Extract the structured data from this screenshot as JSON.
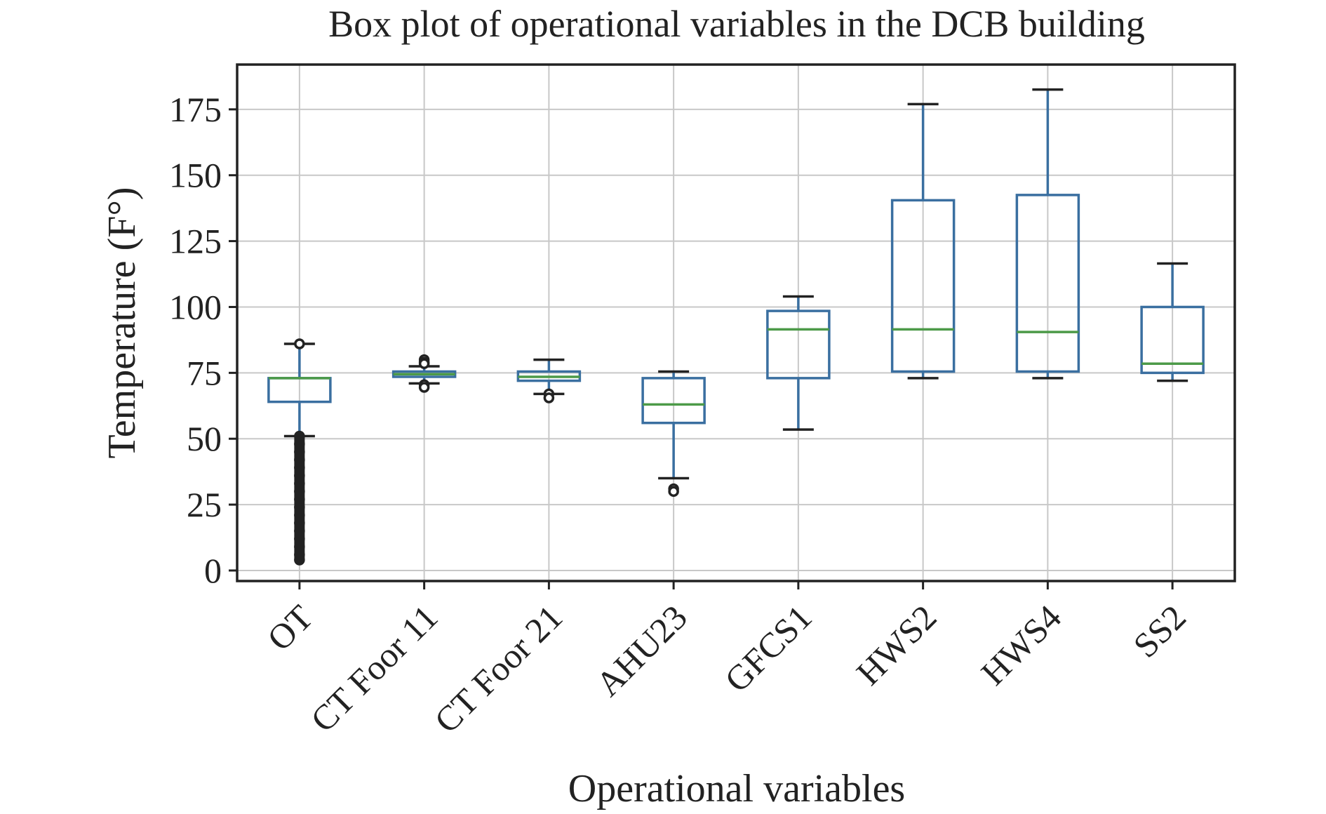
{
  "chart_data": {
    "type": "box",
    "title": "Box plot of operational variables in the DCB building",
    "xlabel": "Operational variables",
    "ylabel": "Temperature (F°)",
    "ylim": [
      -4,
      192
    ],
    "yticks": [
      0,
      25,
      50,
      75,
      100,
      125,
      150,
      175
    ],
    "grid": true,
    "colors": {
      "box": "#3a6fa0",
      "median": "#4c9a48",
      "whisker": "#3a6fa0",
      "cap": "#222222",
      "flier": "#222222",
      "grid": "#c8c8c8",
      "frame": "#222222"
    },
    "categories": [
      "OT",
      "CT Foor 11",
      "CT Foor 21",
      "AHU23",
      "GFCS1",
      "HWS2",
      "HWS4",
      "SS2"
    ],
    "boxes": [
      {
        "name": "OT",
        "whislo": 51,
        "q1": 64,
        "med": 73,
        "q3": 73,
        "whishi": 86,
        "fliers": [
          86,
          51,
          48,
          45,
          42,
          39,
          36,
          33,
          30,
          27,
          24,
          21,
          18,
          15,
          12,
          9,
          6,
          4
        ]
      },
      {
        "name": "CT Foor 11",
        "whislo": 71,
        "q1": 73.5,
        "med": 74.5,
        "q3": 75.5,
        "whishi": 77.5,
        "fliers": [
          80,
          79,
          78.5,
          70.5,
          69.5
        ]
      },
      {
        "name": "CT Foor 21",
        "whislo": 67,
        "q1": 72,
        "med": 73.5,
        "q3": 75.5,
        "whishi": 80,
        "fliers": [
          67,
          65.5
        ]
      },
      {
        "name": "AHU23",
        "whislo": 35,
        "q1": 56,
        "med": 63,
        "q3": 73,
        "whishi": 75.5,
        "fliers": [
          31,
          30
        ]
      },
      {
        "name": "GFCS1",
        "whislo": 53.5,
        "q1": 73,
        "med": 91.5,
        "q3": 98.5,
        "whishi": 104,
        "fliers": []
      },
      {
        "name": "HWS2",
        "whislo": 73,
        "q1": 75.5,
        "med": 91.5,
        "q3": 140.5,
        "whishi": 177,
        "fliers": []
      },
      {
        "name": "HWS4",
        "whislo": 73,
        "q1": 75.5,
        "med": 90.5,
        "q3": 142.5,
        "whishi": 182.5,
        "fliers": []
      },
      {
        "name": "SS2",
        "whislo": 72,
        "q1": 75,
        "med": 78.5,
        "q3": 100,
        "whishi": 116.5,
        "fliers": []
      }
    ]
  }
}
